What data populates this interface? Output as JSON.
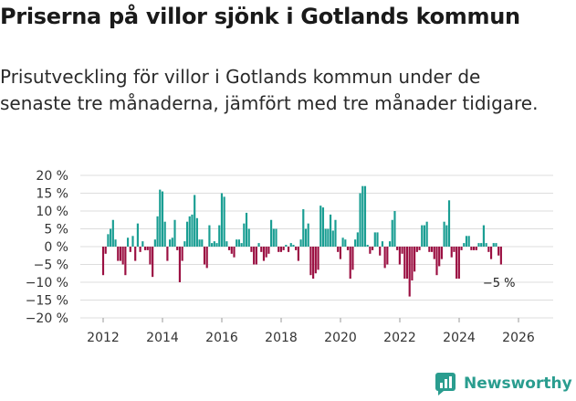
{
  "header": {
    "title": "Priserna på villor sjönk i Gotlands kommun",
    "subtitle": "Prisutveckling för villor i Gotlands kommun under de senaste tre månaderna, jämfört med tre månader tidigare."
  },
  "brand": {
    "name": "Newsworthy"
  },
  "colors": {
    "positive": "#1a9e93",
    "negative": "#9b1042",
    "grid": "#dddddd",
    "brand": "#2a9d8f"
  },
  "chart_data": {
    "type": "bar",
    "title": "Prisutveckling för villor i Gotlands kommun",
    "xlabel": "",
    "ylabel": "",
    "ylim": [
      -20,
      20
    ],
    "y_ticks": [
      "20 %",
      "15 %",
      "10 %",
      "5 %",
      "0 %",
      "−5 %",
      "−10 %",
      "−15 %",
      "−20 %"
    ],
    "y_tick_values": [
      20,
      15,
      10,
      5,
      0,
      -5,
      -10,
      -15,
      -20
    ],
    "x_ticks": [
      "2012",
      "2014",
      "2016",
      "2018",
      "2020",
      "2022",
      "2024",
      "2026"
    ],
    "x_tick_values": [
      2012,
      2014,
      2016,
      2018,
      2020,
      2022,
      2024,
      2026
    ],
    "x_start": 2012.0,
    "x_step_years": 0.0833,
    "values": [
      -8,
      -2,
      3.5,
      5,
      7.5,
      2,
      -4,
      -4,
      -5,
      -8,
      2.5,
      -1.5,
      3,
      -4,
      6.5,
      -1.5,
      1.5,
      -1,
      -1,
      -5,
      -8.5,
      2,
      8.5,
      16,
      15.5,
      7,
      -4,
      2,
      2.5,
      7.5,
      -1,
      -10,
      -4,
      1.5,
      7,
      8.5,
      9,
      14.5,
      8,
      2,
      2,
      -5,
      -6,
      6,
      1,
      1.5,
      1,
      6,
      15,
      14,
      1.5,
      -1,
      -2,
      -3,
      2,
      2,
      1,
      6.5,
      9.5,
      5,
      -1.5,
      -5,
      -5,
      1,
      -1.5,
      -4,
      -3,
      -2,
      7.5,
      5,
      5,
      -1.5,
      -1.5,
      -1,
      0.5,
      -1.5,
      1,
      0.5,
      -1,
      -4,
      2,
      10.5,
      5,
      6.5,
      -8,
      -9,
      -7.5,
      -6.5,
      11.5,
      11,
      5,
      5,
      9,
      4.5,
      7.5,
      -1.5,
      -3.5,
      2.5,
      2,
      -1,
      -9,
      -6.5,
      2,
      4,
      15,
      17,
      17,
      0.5,
      -2,
      -1,
      4,
      4,
      -2.5,
      1.5,
      -6,
      -5,
      1.5,
      7.5,
      10,
      -1,
      -5,
      -2,
      -9,
      -9,
      -14,
      -9.5,
      -7,
      -1.5,
      -1,
      6,
      6,
      7,
      -1.5,
      -1.5,
      -3.5,
      -8,
      -5.5,
      -3.5,
      7,
      6,
      13,
      -3,
      -1.5,
      -9,
      -9,
      -1,
      1,
      3,
      3,
      -1,
      -1,
      -1,
      1,
      1,
      6,
      1,
      -1.5,
      -3.5,
      1,
      1,
      -2.5,
      -5
    ],
    "annotation": "−5 %"
  }
}
